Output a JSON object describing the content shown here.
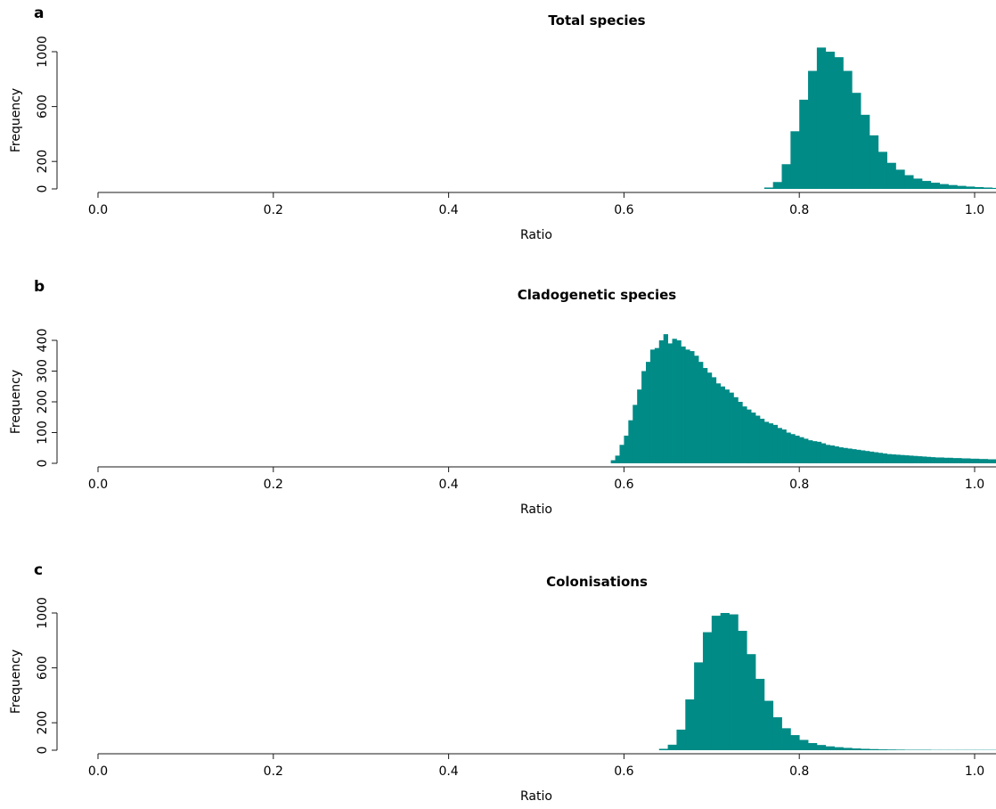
{
  "chart_data": [
    {
      "type": "bar",
      "panel_label": "a",
      "title": "Total species",
      "xlabel": "Ratio",
      "ylabel": "Frequency",
      "xlim": [
        0.0,
        1.0
      ],
      "ylim": [
        0,
        1000
      ],
      "xticks": [
        "0.0",
        "0.2",
        "0.4",
        "0.6",
        "0.8",
        "1.0"
      ],
      "yticks": [
        "0",
        "200",
        "600",
        "1000"
      ],
      "bin_width": 0.01,
      "bin_start": 0.76,
      "values": [
        10,
        50,
        180,
        420,
        650,
        860,
        1030,
        1000,
        960,
        860,
        700,
        540,
        390,
        270,
        190,
        140,
        100,
        75,
        58,
        45,
        35,
        28,
        22,
        17,
        13,
        10,
        7
      ],
      "bar_color": "#008b87"
    },
    {
      "type": "bar",
      "panel_label": "b",
      "title": "Cladogenetic species",
      "xlabel": "Ratio",
      "ylabel": "Frequency",
      "xlim": [
        0.0,
        1.0
      ],
      "ylim": [
        0,
        400
      ],
      "xticks": [
        "0.0",
        "0.2",
        "0.4",
        "0.6",
        "0.8",
        "1.0"
      ],
      "yticks": [
        "0",
        "100",
        "200",
        "300",
        "400"
      ],
      "bin_width": 0.005,
      "bin_start": 0.585,
      "values": [
        10,
        25,
        60,
        90,
        140,
        190,
        240,
        300,
        330,
        370,
        375,
        400,
        420,
        390,
        405,
        400,
        380,
        370,
        365,
        350,
        330,
        310,
        295,
        280,
        260,
        250,
        240,
        230,
        215,
        200,
        185,
        175,
        165,
        155,
        145,
        135,
        130,
        125,
        115,
        110,
        100,
        95,
        90,
        85,
        80,
        75,
        72,
        70,
        65,
        60,
        58,
        55,
        52,
        50,
        48,
        46,
        44,
        42,
        40,
        38,
        36,
        34,
        32,
        30,
        29,
        28,
        27,
        26,
        25,
        24,
        23,
        22,
        21,
        20,
        19,
        19,
        18,
        18,
        17,
        17,
        16,
        16,
        15,
        15,
        14,
        14,
        13,
        13,
        12,
        12
      ],
      "bar_color": "#008b87"
    },
    {
      "type": "bar",
      "panel_label": "c",
      "title": "Colonisations",
      "xlabel": "Ratio",
      "ylabel": "Frequency",
      "xlim": [
        0.0,
        1.0
      ],
      "ylim": [
        0,
        1000
      ],
      "xticks": [
        "0.0",
        "0.2",
        "0.4",
        "0.6",
        "0.8",
        "1.0"
      ],
      "yticks": [
        "0",
        "200",
        "600",
        "1000"
      ],
      "bin_width": 0.01,
      "bin_start": 0.64,
      "values": [
        10,
        40,
        150,
        370,
        640,
        860,
        980,
        1000,
        990,
        870,
        700,
        520,
        360,
        240,
        160,
        110,
        75,
        52,
        38,
        28,
        22,
        17,
        13,
        10,
        8,
        6,
        5,
        4,
        3,
        3,
        3,
        2,
        2,
        2,
        2,
        2,
        2,
        2,
        2
      ],
      "bar_color": "#008b87"
    }
  ]
}
